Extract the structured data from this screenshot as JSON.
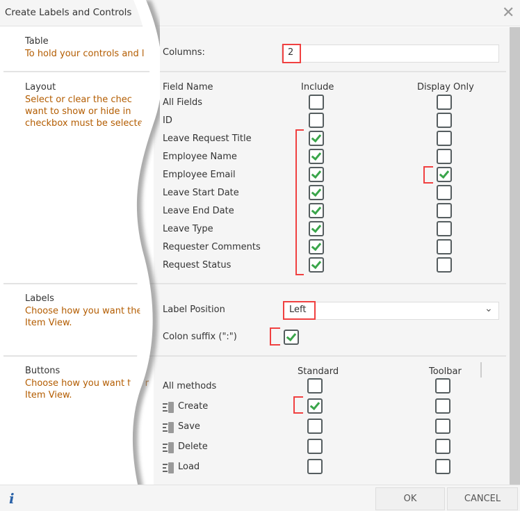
{
  "dialog": {
    "title": "Create Labels and Controls",
    "close_icon": "close-icon"
  },
  "table": {
    "title": "Table",
    "desc": "To hold your controls and l",
    "columns_label": "Columns:",
    "columns_value": "2"
  },
  "layout": {
    "title": "Layout",
    "desc": [
      "Select or clear the chec",
      "want to show or hide in",
      "checkbox must be selecte"
    ],
    "headers": {
      "field": "Field Name",
      "include": "Include",
      "display": "Display Only"
    },
    "fields": [
      {
        "name": "All Fields",
        "include": false,
        "display": false
      },
      {
        "name": "ID",
        "include": false,
        "display": false
      },
      {
        "name": "Leave Request Title",
        "include": true,
        "display": false
      },
      {
        "name": "Employee Name",
        "include": true,
        "display": false
      },
      {
        "name": "Employee Email",
        "include": true,
        "display": true
      },
      {
        "name": "Leave Start Date",
        "include": true,
        "display": false
      },
      {
        "name": "Leave End Date",
        "include": true,
        "display": false
      },
      {
        "name": "Leave Type",
        "include": true,
        "display": false
      },
      {
        "name": "Requester Comments",
        "include": true,
        "display": false
      },
      {
        "name": "Request Status",
        "include": true,
        "display": false
      }
    ]
  },
  "labels": {
    "title": "Labels",
    "desc": [
      "Choose how you want the",
      "Item View."
    ],
    "position_label": "Label Position",
    "position_value": "Left",
    "colon_label": "Colon suffix (\":\")",
    "colon_checked": true
  },
  "buttons": {
    "title": "Buttons",
    "desc": [
      "Choose how you want the r",
      "Item View."
    ],
    "headers": {
      "standard": "Standard",
      "toolbar": "Toolbar"
    },
    "methods": [
      {
        "name": "All methods",
        "icon": false,
        "standard": false,
        "toolbar": false
      },
      {
        "name": "Create",
        "icon": true,
        "standard": true,
        "toolbar": false
      },
      {
        "name": "Save",
        "icon": true,
        "standard": false,
        "toolbar": false
      },
      {
        "name": "Delete",
        "icon": true,
        "standard": false,
        "toolbar": false
      },
      {
        "name": "Load",
        "icon": true,
        "standard": false,
        "toolbar": false
      }
    ]
  },
  "footer": {
    "info": "i",
    "ok": "OK",
    "cancel": "CANCEL"
  },
  "colors": {
    "highlight": "#f04040",
    "check": "#3aa54a",
    "desc_text": "#b35c00"
  }
}
